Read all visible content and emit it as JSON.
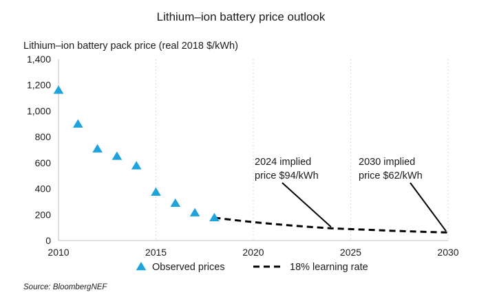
{
  "chart_data": {
    "type": "scatter",
    "title": "Lithium–ion battery price outlook",
    "ylabel": "Lithium–ion battery pack price (real 2018 $/kWh)",
    "xlim": [
      2010,
      2030
    ],
    "ylim": [
      0,
      1400
    ],
    "x_ticks": [
      "2010",
      "2015",
      "2020",
      "2025",
      "2030"
    ],
    "y_ticks": [
      "0",
      "200",
      "400",
      "600",
      "800",
      "1,000",
      "1,200",
      "1,400"
    ],
    "x_tick_values": [
      2010,
      2015,
      2020,
      2025,
      2030
    ],
    "y_tick_values": [
      0,
      200,
      400,
      600,
      800,
      1000,
      1200,
      1400
    ],
    "grid": "vertical dashed",
    "legend_position": "bottom",
    "series": [
      {
        "name": "Observed prices",
        "type": "scatter",
        "marker": "triangle",
        "color": "#1fa3dc",
        "x": [
          2010,
          2011,
          2012,
          2013,
          2014,
          2015,
          2016,
          2017,
          2018
        ],
        "values": [
          1160,
          899,
          707,
          650,
          577,
          373,
          288,
          214,
          176
        ]
      },
      {
        "name": "18% learning rate",
        "type": "line",
        "style": "dashed",
        "color": "#000000",
        "x": [
          2018,
          2019,
          2020,
          2021,
          2022,
          2023,
          2024,
          2025,
          2026,
          2027,
          2028,
          2029,
          2030
        ],
        "values": [
          176,
          158,
          142,
          128,
          115,
          104,
          94,
          88,
          82,
          76,
          71,
          66,
          62
        ]
      }
    ],
    "annotations": [
      {
        "lines": [
          "2024 implied",
          "price $94/kWh"
        ],
        "point": [
          2024,
          94
        ]
      },
      {
        "lines": [
          "2030 implied",
          "price $62/kWh"
        ],
        "point": [
          2030,
          62
        ]
      }
    ],
    "source": "Source: BloombergNEF"
  }
}
